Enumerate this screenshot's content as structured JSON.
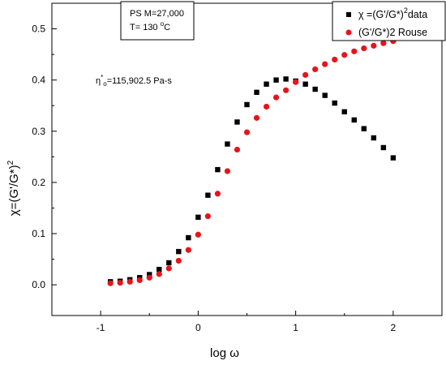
{
  "chart_data": {
    "type": "scatter",
    "xlabel": "log ω",
    "ylabel_main": "χ=(G'/G*)",
    "ylabel_sup": "2",
    "xlim": [
      -1.5,
      2.5
    ],
    "ylim": [
      -0.06,
      0.55
    ],
    "xticks": [
      -1,
      0,
      1,
      2
    ],
    "yticks": [
      0.0,
      0.1,
      0.2,
      0.3,
      0.4,
      0.5
    ],
    "xtick_labels": [
      "-1",
      "0",
      "1",
      "2"
    ],
    "ytick_labels": [
      "0.0",
      "0.1",
      "0.2",
      "0.3",
      "0.4",
      "0.5"
    ],
    "annotation_box": {
      "line1": "PS  M=27,000",
      "line2_prefix": "T= 130 ",
      "line2_sup": "o",
      "line2_suffix": "C"
    },
    "annotation_eta": {
      "base": "η",
      "sup": "*",
      "sub": "o",
      "rest": "=115,902.5 Pa-s"
    },
    "legend": {
      "position": "top-right"
    },
    "series": [
      {
        "name_prefix": "χ =(G'/G*)",
        "name_sup": "2",
        "name_suffix": "data",
        "marker": "square",
        "color": "#000000",
        "x": [
          -0.9,
          -0.8,
          -0.7,
          -0.6,
          -0.5,
          -0.4,
          -0.3,
          -0.2,
          -0.1,
          0.0,
          0.1,
          0.2,
          0.3,
          0.4,
          0.5,
          0.6,
          0.7,
          0.8,
          0.9,
          1.0,
          1.1,
          1.2,
          1.3,
          1.4,
          1.5,
          1.6,
          1.7,
          1.8,
          1.9,
          2.0
        ],
        "y": [
          0.006,
          0.007,
          0.01,
          0.014,
          0.02,
          0.03,
          0.043,
          0.065,
          0.092,
          0.132,
          0.175,
          0.225,
          0.275,
          0.318,
          0.352,
          0.376,
          0.392,
          0.4,
          0.402,
          0.398,
          0.392,
          0.382,
          0.37,
          0.355,
          0.338,
          0.322,
          0.305,
          0.287,
          0.268,
          0.248
        ]
      },
      {
        "name": "(G'/G*)2 Rouse",
        "marker": "circle",
        "color": "#e8141a",
        "x": [
          -0.9,
          -0.8,
          -0.7,
          -0.6,
          -0.5,
          -0.4,
          -0.3,
          -0.2,
          -0.1,
          0.0,
          0.1,
          0.2,
          0.3,
          0.4,
          0.5,
          0.6,
          0.7,
          0.8,
          0.9,
          1.0,
          1.1,
          1.2,
          1.3,
          1.4,
          1.5,
          1.6,
          1.7,
          1.8,
          1.9,
          2.0
        ],
        "y": [
          0.003,
          0.004,
          0.006,
          0.009,
          0.014,
          0.021,
          0.032,
          0.047,
          0.068,
          0.098,
          0.134,
          0.178,
          0.222,
          0.264,
          0.298,
          0.326,
          0.348,
          0.366,
          0.38,
          0.396,
          0.41,
          0.421,
          0.431,
          0.44,
          0.449,
          0.456,
          0.462,
          0.467,
          0.472,
          0.476
        ]
      }
    ]
  }
}
